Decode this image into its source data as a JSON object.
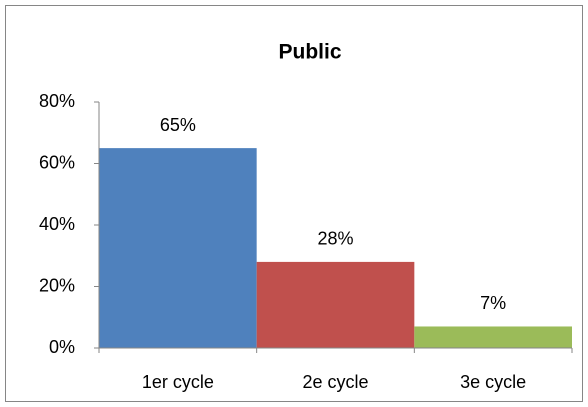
{
  "chart_data": {
    "type": "bar",
    "title": "Public",
    "categories": [
      "1er cycle",
      "2e cycle",
      "3e cycle"
    ],
    "values": [
      65,
      28,
      7
    ],
    "value_labels": [
      "65%",
      "28%",
      "7%"
    ],
    "colors": [
      "#4f81bd",
      "#c0504d",
      "#9bbb59"
    ],
    "ylim": [
      0,
      80
    ],
    "yticks": [
      {
        "value": 0,
        "label": "0%"
      },
      {
        "value": 20,
        "label": "20%"
      },
      {
        "value": 40,
        "label": "40%"
      },
      {
        "value": 60,
        "label": "60%"
      },
      {
        "value": 80,
        "label": "80%"
      }
    ],
    "grid": false
  }
}
